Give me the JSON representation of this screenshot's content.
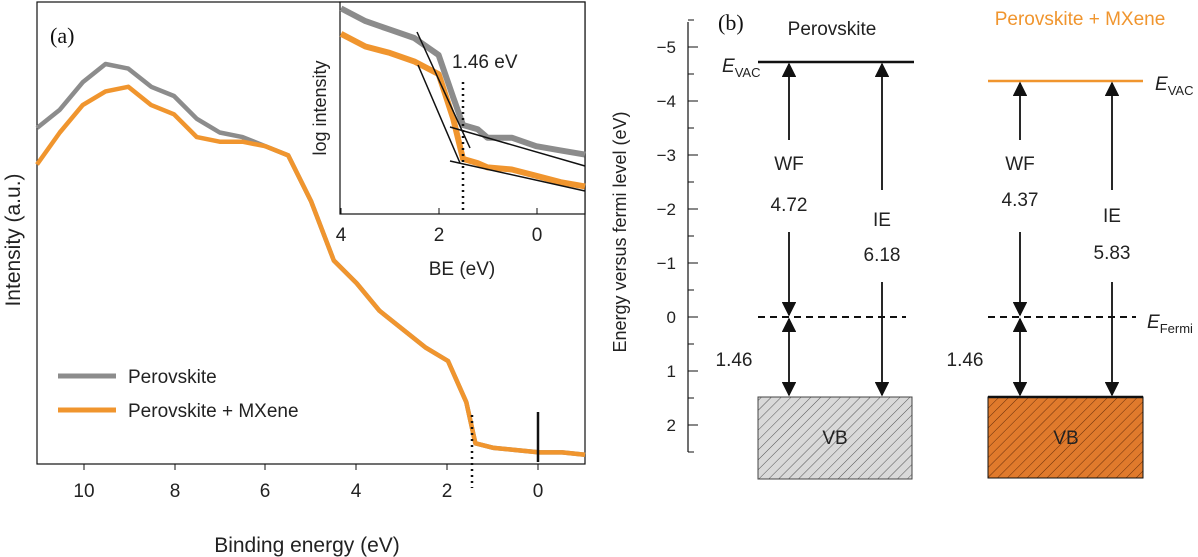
{
  "panel_a": {
    "label": "(a)",
    "ylabel": "Intensity (a.u.)",
    "xlabel": "Binding energy (eV)",
    "xticks": [
      "10",
      "8",
      "6",
      "4",
      "2",
      "0"
    ],
    "legend": [
      {
        "name": "Perovskite",
        "color": "#8c8c8c"
      },
      {
        "name": "Perovskite + MXene",
        "color": "#f0952e"
      }
    ],
    "inset": {
      "ylabel": "log intensity",
      "xlabel": "BE (eV)",
      "xticks": [
        "4",
        "2",
        "0"
      ],
      "annotation": "1.46 eV"
    }
  },
  "panel_b": {
    "label": "(b)",
    "ylabel": "Energy versus fermi level (eV)",
    "yticks": [
      "−5",
      "−4",
      "−3",
      "−2",
      "−1",
      "0",
      "1",
      "2"
    ],
    "evac_main": "E",
    "evac_sub": "VAC",
    "efermi_main": "E",
    "efermi_sub": "Fermi",
    "left": {
      "title": "Perovskite",
      "wf_label": "WF",
      "wf_value": "4.72",
      "ie_label": "IE",
      "ie_value": "6.18",
      "gap": "1.46",
      "vb": "VB"
    },
    "right": {
      "title": "Perovskite + MXene",
      "title_color": "#f0952e",
      "wf_label": "WF",
      "wf_value": "4.37",
      "ie_label": "IE",
      "ie_value": "5.83",
      "gap": "1.46",
      "vb": "VB"
    }
  },
  "chart_data": [
    {
      "type": "line",
      "panel": "a",
      "xlabel": "Binding energy (eV)",
      "ylabel": "Intensity (a.u.)",
      "xlim": [
        11,
        -1
      ],
      "x_reversed": true,
      "series": [
        {
          "name": "Perovskite",
          "color": "#8c8c8c",
          "x": [
            11,
            10.5,
            10,
            9.5,
            9,
            8.5,
            8,
            7.5,
            7,
            6.5,
            6,
            5.5,
            5,
            4.5,
            4,
            3.5,
            3,
            2.5,
            2,
            1.6,
            1.4,
            1,
            0.5,
            0,
            -0.5,
            -1
          ],
          "y": [
            0.72,
            0.76,
            0.82,
            0.86,
            0.85,
            0.81,
            0.79,
            0.74,
            0.71,
            0.7,
            0.68,
            0.66,
            0.56,
            0.43,
            0.38,
            0.32,
            0.28,
            0.24,
            0.21,
            0.12,
            0.03,
            0.02,
            0.015,
            0.01,
            0.01,
            0.005
          ]
        },
        {
          "name": "Perovskite + MXene",
          "color": "#f0952e",
          "x": [
            11,
            10.5,
            10,
            9.5,
            9,
            8.5,
            8,
            7.5,
            7,
            6.5,
            6,
            5.5,
            5,
            4.5,
            4,
            3.5,
            3,
            2.5,
            2,
            1.6,
            1.4,
            1,
            0.5,
            0,
            -0.5,
            -1
          ],
          "y": [
            0.64,
            0.71,
            0.77,
            0.8,
            0.81,
            0.77,
            0.75,
            0.7,
            0.69,
            0.69,
            0.68,
            0.66,
            0.56,
            0.43,
            0.38,
            0.32,
            0.28,
            0.24,
            0.21,
            0.12,
            0.03,
            0.02,
            0.015,
            0.01,
            0.01,
            0.005
          ]
        }
      ],
      "annotations": [
        {
          "x": 1.46,
          "style": "dotted"
        },
        {
          "x": 0,
          "style": "solid"
        }
      ]
    },
    {
      "type": "line",
      "panel": "a-inset",
      "xlabel": "BE (eV)",
      "ylabel": "log intensity",
      "xlim": [
        4,
        -1
      ],
      "x_reversed": true,
      "series": [
        {
          "name": "Perovskite",
          "color": "#8c8c8c",
          "x": [
            4,
            3.5,
            3,
            2.5,
            2,
            1.7,
            1.5,
            1.2,
            1,
            0.5,
            0,
            -0.5,
            -1
          ],
          "y": [
            0.97,
            0.91,
            0.87,
            0.83,
            0.75,
            0.55,
            0.42,
            0.4,
            0.36,
            0.36,
            0.32,
            0.3,
            0.28
          ]
        },
        {
          "name": "Perovskite + MXene",
          "color": "#f0952e",
          "x": [
            4,
            3.5,
            3,
            2.5,
            2,
            1.7,
            1.5,
            1.2,
            1,
            0.5,
            0,
            -0.5,
            -1
          ],
          "y": [
            0.85,
            0.79,
            0.76,
            0.72,
            0.66,
            0.45,
            0.26,
            0.24,
            0.22,
            0.21,
            0.18,
            0.15,
            0.13
          ]
        }
      ],
      "annotation": {
        "x": 1.46,
        "label": "1.46 eV"
      }
    },
    {
      "type": "diagram",
      "panel": "b",
      "ylabel": "Energy versus fermi level (eV)",
      "ylim": [
        -5.5,
        2.5
      ],
      "y_reversed": true,
      "levels": [
        {
          "system": "Perovskite",
          "E_VAC": -4.72,
          "WF": 4.72,
          "IE": 6.18,
          "VB_top": 1.46,
          "E_Fermi": 0
        },
        {
          "system": "Perovskite + MXene",
          "E_VAC": -4.37,
          "WF": 4.37,
          "IE": 5.83,
          "VB_top": 1.46,
          "E_Fermi": 0
        }
      ]
    }
  ]
}
